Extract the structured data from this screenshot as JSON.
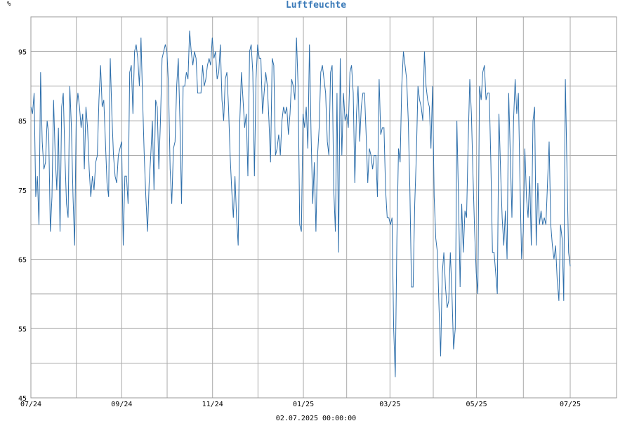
{
  "chart_data": {
    "type": "line",
    "title": "Luftfeuchte",
    "ylabel": "%",
    "footer": "02.07.2025 00:00:00",
    "ylim": [
      45,
      100
    ],
    "xlim": [
      0,
      380
    ],
    "yticks": [
      45,
      55,
      65,
      75,
      85,
      95
    ],
    "xticks": [
      {
        "label": "07/24",
        "x": 0
      },
      {
        "label": "09/24",
        "x": 64
      },
      {
        "label": "11/24",
        "x": 128
      },
      {
        "label": "01/25",
        "x": 192
      },
      {
        "label": "03/25",
        "x": 253
      },
      {
        "label": "05/25",
        "x": 314
      },
      {
        "label": "07/25",
        "x": 380
      }
    ],
    "grid": true,
    "line_color": "#2e6fab",
    "series": [
      {
        "values": [
          87,
          86,
          89,
          74,
          77,
          70,
          92,
          82,
          78,
          79,
          85,
          83,
          69,
          74,
          88,
          80,
          75,
          84,
          69,
          87,
          89,
          80,
          73,
          71,
          90,
          84,
          74,
          67,
          86,
          89,
          87,
          84,
          86,
          78,
          87,
          84,
          78,
          74,
          77,
          75,
          79,
          80,
          88,
          93,
          87,
          88,
          82,
          76,
          74,
          94,
          86,
          80,
          77,
          76,
          80,
          81,
          82,
          67,
          77,
          77,
          73,
          92,
          93,
          86,
          95,
          96,
          94,
          90,
          97,
          88,
          80,
          74,
          69,
          76,
          80,
          85,
          75,
          88,
          87,
          78,
          85,
          94,
          95,
          96,
          95,
          90,
          78,
          73,
          81,
          82,
          90,
          94,
          85,
          73,
          90,
          90,
          92,
          91,
          98,
          95,
          93,
          95,
          94,
          89,
          89,
          89,
          93,
          90,
          91,
          93,
          94,
          93,
          97,
          94,
          95,
          91,
          92,
          96,
          88,
          85,
          91,
          92,
          87,
          80,
          75,
          71,
          77,
          71,
          67,
          85,
          92,
          88,
          84,
          86,
          77,
          95,
          96,
          92,
          77,
          91,
          96,
          94,
          94,
          86,
          89,
          92,
          90,
          85,
          79,
          94,
          93,
          80,
          81,
          83,
          80,
          85,
          87,
          86,
          87,
          83,
          86,
          91,
          90,
          88,
          97,
          90,
          70,
          69,
          86,
          84,
          87,
          81,
          96,
          83,
          73,
          79,
          69,
          80,
          84,
          92,
          93,
          91,
          89,
          82,
          80,
          92,
          93,
          75,
          69,
          89,
          66,
          94,
          80,
          89,
          85,
          86,
          84,
          92,
          93,
          89,
          76,
          86,
          90,
          82,
          87,
          89,
          89,
          83,
          76,
          81,
          80,
          78,
          80,
          80,
          74,
          91,
          83,
          84,
          84,
          75,
          71,
          71,
          70,
          71,
          55,
          48,
          68,
          81,
          79,
          90,
          95,
          93,
          91,
          85,
          75,
          61,
          61,
          73,
          80,
          90,
          88,
          87,
          85,
          95,
          90,
          88,
          87,
          81,
          90,
          74,
          68,
          66,
          58,
          51,
          63,
          66,
          61,
          58,
          59,
          66,
          60,
          52,
          55,
          85,
          74,
          61,
          73,
          66,
          72,
          71,
          82,
          91,
          86,
          77,
          69,
          63,
          60,
          90,
          88,
          92,
          93,
          88,
          89,
          89,
          79,
          66,
          66,
          63,
          60,
          86,
          78,
          71,
          67,
          72,
          65,
          89,
          80,
          71,
          85,
          91,
          86,
          89,
          76,
          65,
          69,
          81,
          74,
          71,
          77,
          67,
          85,
          87,
          67,
          76,
          70,
          72,
          70,
          71,
          70,
          76,
          82,
          70,
          67,
          65,
          67,
          62,
          59,
          70,
          68,
          59,
          91,
          78,
          66,
          64
        ]
      }
    ]
  }
}
